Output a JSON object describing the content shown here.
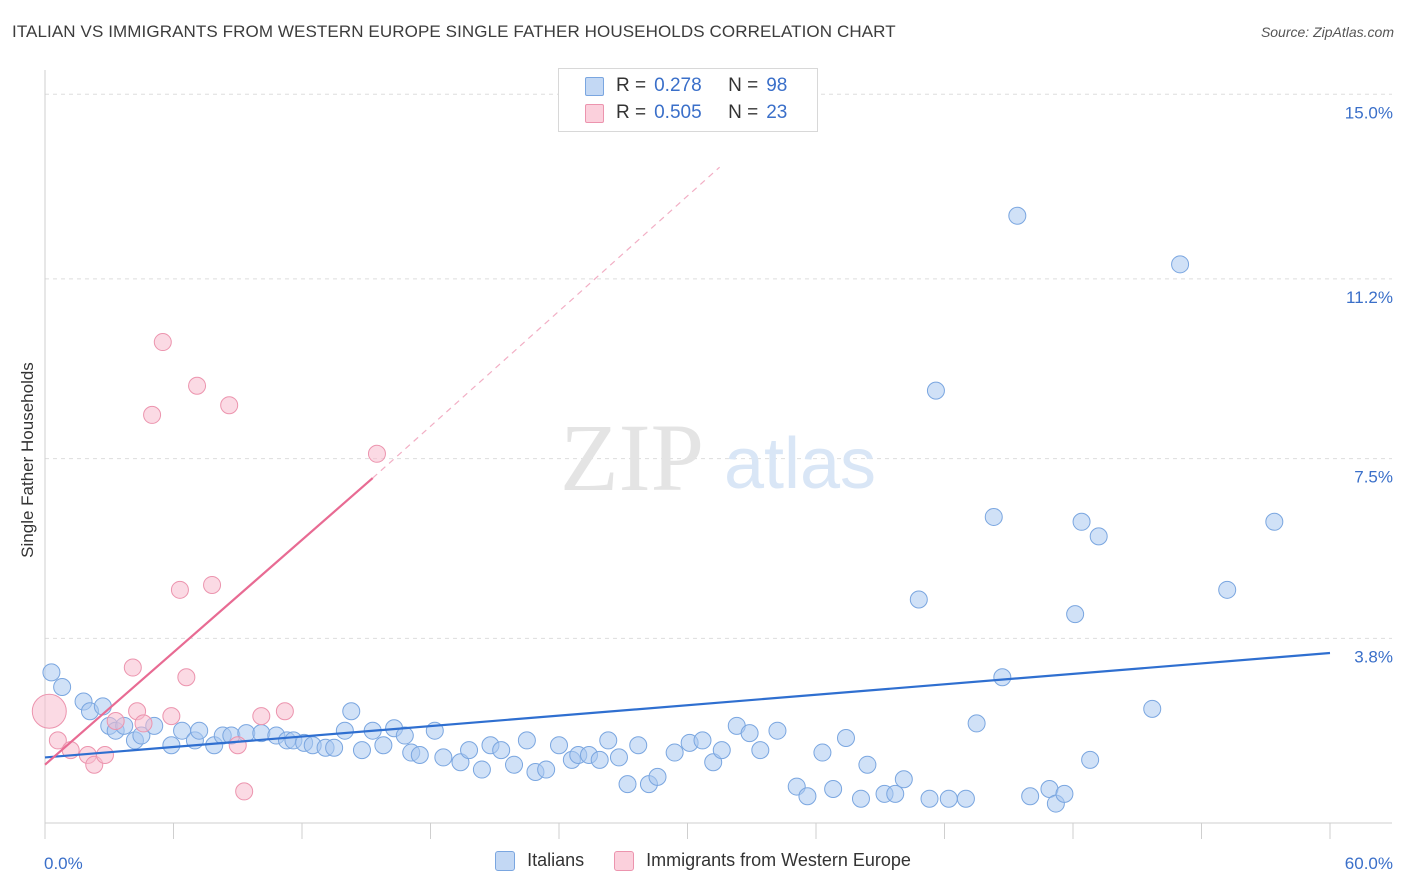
{
  "header": {
    "title": "ITALIAN VS IMMIGRANTS FROM WESTERN EUROPE SINGLE FATHER HOUSEHOLDS CORRELATION CHART",
    "source": "Source: ZipAtlas.com"
  },
  "legend_top": [
    {
      "r_label": "R =",
      "r_value": "0.278",
      "n_label": "N =",
      "n_value": "98"
    },
    {
      "r_label": "R =",
      "r_value": "0.505",
      "n_label": "N =",
      "n_value": "23"
    }
  ],
  "legend_bottom": [
    "Italians",
    "Immigrants from Western Europe"
  ],
  "watermark": {
    "zip": "ZIP",
    "atlas": "atlas"
  },
  "colors": {
    "italians_fill": "#aac8f0",
    "italians_stroke": "#7aa6e0",
    "italians_line": "#2f6fd0",
    "western_fill": "#f8bccd",
    "western_stroke": "#ec94ae",
    "western_line": "#e86b93",
    "grid": "#dddddd",
    "tick_label": "#3a6fc9"
  },
  "chart_data": {
    "type": "scatter",
    "title": "ITALIAN VS IMMIGRANTS FROM WESTERN EUROPE SINGLE FATHER HOUSEHOLDS CORRELATION CHART",
    "xlabel": "",
    "ylabel": "Single Father Households",
    "xlim": [
      0,
      60
    ],
    "ylim": [
      0,
      15.5
    ],
    "x_tick_labels": [
      "0.0%",
      "60.0%"
    ],
    "y_ticks": [
      3.8,
      7.5,
      11.2,
      15.0
    ],
    "y_tick_labels": [
      "3.8%",
      "7.5%",
      "11.2%",
      "15.0%"
    ],
    "grid": true,
    "legend_position": "top-center",
    "series": [
      {
        "name": "Italians",
        "R": 0.278,
        "N": 98,
        "trend": {
          "x": [
            0,
            60
          ],
          "y": [
            1.35,
            3.5
          ],
          "dashed_ext": false
        },
        "points": [
          [
            0.3,
            3.1
          ],
          [
            0.8,
            2.8
          ],
          [
            1.8,
            2.5
          ],
          [
            2.1,
            2.3
          ],
          [
            2.7,
            2.4
          ],
          [
            3.0,
            2.0
          ],
          [
            3.3,
            1.9
          ],
          [
            3.7,
            2.0
          ],
          [
            4.2,
            1.7
          ],
          [
            4.5,
            1.8
          ],
          [
            5.1,
            2.0
          ],
          [
            5.9,
            1.6
          ],
          [
            6.4,
            1.9
          ],
          [
            7.0,
            1.7
          ],
          [
            7.2,
            1.9
          ],
          [
            7.9,
            1.6
          ],
          [
            8.3,
            1.8
          ],
          [
            8.7,
            1.8
          ],
          [
            9.4,
            1.85
          ],
          [
            10.1,
            1.85
          ],
          [
            10.8,
            1.8
          ],
          [
            11.3,
            1.7
          ],
          [
            11.6,
            1.7
          ],
          [
            12.1,
            1.65
          ],
          [
            12.5,
            1.6
          ],
          [
            13.1,
            1.55
          ],
          [
            13.5,
            1.55
          ],
          [
            14.0,
            1.9
          ],
          [
            14.3,
            2.3
          ],
          [
            14.8,
            1.5
          ],
          [
            15.3,
            1.9
          ],
          [
            15.8,
            1.6
          ],
          [
            16.3,
            1.95
          ],
          [
            16.8,
            1.8
          ],
          [
            17.1,
            1.45
          ],
          [
            17.5,
            1.4
          ],
          [
            18.2,
            1.9
          ],
          [
            18.6,
            1.35
          ],
          [
            19.4,
            1.25
          ],
          [
            19.8,
            1.5
          ],
          [
            20.4,
            1.1
          ],
          [
            20.8,
            1.6
          ],
          [
            21.3,
            1.5
          ],
          [
            21.9,
            1.2
          ],
          [
            22.5,
            1.7
          ],
          [
            22.9,
            1.05
          ],
          [
            23.4,
            1.1
          ],
          [
            24.0,
            1.6
          ],
          [
            24.6,
            1.3
          ],
          [
            24.9,
            1.4
          ],
          [
            25.4,
            1.4
          ],
          [
            25.9,
            1.3
          ],
          [
            26.3,
            1.7
          ],
          [
            26.8,
            1.35
          ],
          [
            27.2,
            0.8
          ],
          [
            27.7,
            1.6
          ],
          [
            28.2,
            0.8
          ],
          [
            28.6,
            0.95
          ],
          [
            29.4,
            1.45
          ],
          [
            30.1,
            1.65
          ],
          [
            30.7,
            1.7
          ],
          [
            31.2,
            1.25
          ],
          [
            31.6,
            1.5
          ],
          [
            32.3,
            2.0
          ],
          [
            32.9,
            1.85
          ],
          [
            33.4,
            1.5
          ],
          [
            34.2,
            1.9
          ],
          [
            35.1,
            0.75
          ],
          [
            35.6,
            0.55
          ],
          [
            36.3,
            1.45
          ],
          [
            36.8,
            0.7
          ],
          [
            37.4,
            1.75
          ],
          [
            38.1,
            0.5
          ],
          [
            38.4,
            1.2
          ],
          [
            39.2,
            0.6
          ],
          [
            39.7,
            0.6
          ],
          [
            40.1,
            0.9
          ],
          [
            40.8,
            4.6
          ],
          [
            41.3,
            0.5
          ],
          [
            41.6,
            8.9
          ],
          [
            42.2,
            0.5
          ],
          [
            43.0,
            0.5
          ],
          [
            43.5,
            2.05
          ],
          [
            44.3,
            6.3
          ],
          [
            44.7,
            3.0
          ],
          [
            45.4,
            12.5
          ],
          [
            46.0,
            0.55
          ],
          [
            46.9,
            0.7
          ],
          [
            47.2,
            0.4
          ],
          [
            47.6,
            0.6
          ],
          [
            48.1,
            4.3
          ],
          [
            48.4,
            6.2
          ],
          [
            48.8,
            1.3
          ],
          [
            49.2,
            5.9
          ],
          [
            51.7,
            2.35
          ],
          [
            53.0,
            11.5
          ],
          [
            55.2,
            4.8
          ],
          [
            57.4,
            6.2
          ]
        ]
      },
      {
        "name": "Immigrants from Western Europe",
        "R": 0.505,
        "N": 23,
        "trend": {
          "x": [
            0,
            15.3
          ],
          "y": [
            1.2,
            7.1
          ],
          "dashed_ext_to": [
            31.5,
            13.5
          ]
        },
        "points": [
          [
            0.2,
            2.3
          ],
          [
            0.6,
            1.7
          ],
          [
            1.2,
            1.5
          ],
          [
            2.0,
            1.4
          ],
          [
            2.3,
            1.2
          ],
          [
            2.8,
            1.4
          ],
          [
            3.3,
            2.1
          ],
          [
            4.1,
            3.2
          ],
          [
            4.3,
            2.3
          ],
          [
            4.6,
            2.05
          ],
          [
            5.0,
            8.4
          ],
          [
            5.5,
            9.9
          ],
          [
            5.9,
            2.2
          ],
          [
            6.3,
            4.8
          ],
          [
            6.6,
            3.0
          ],
          [
            7.1,
            9.0
          ],
          [
            7.8,
            4.9
          ],
          [
            8.6,
            8.6
          ],
          [
            9.0,
            1.6
          ],
          [
            9.3,
            0.65
          ],
          [
            10.1,
            2.2
          ],
          [
            11.2,
            2.3
          ],
          [
            15.5,
            7.6
          ]
        ]
      }
    ]
  }
}
